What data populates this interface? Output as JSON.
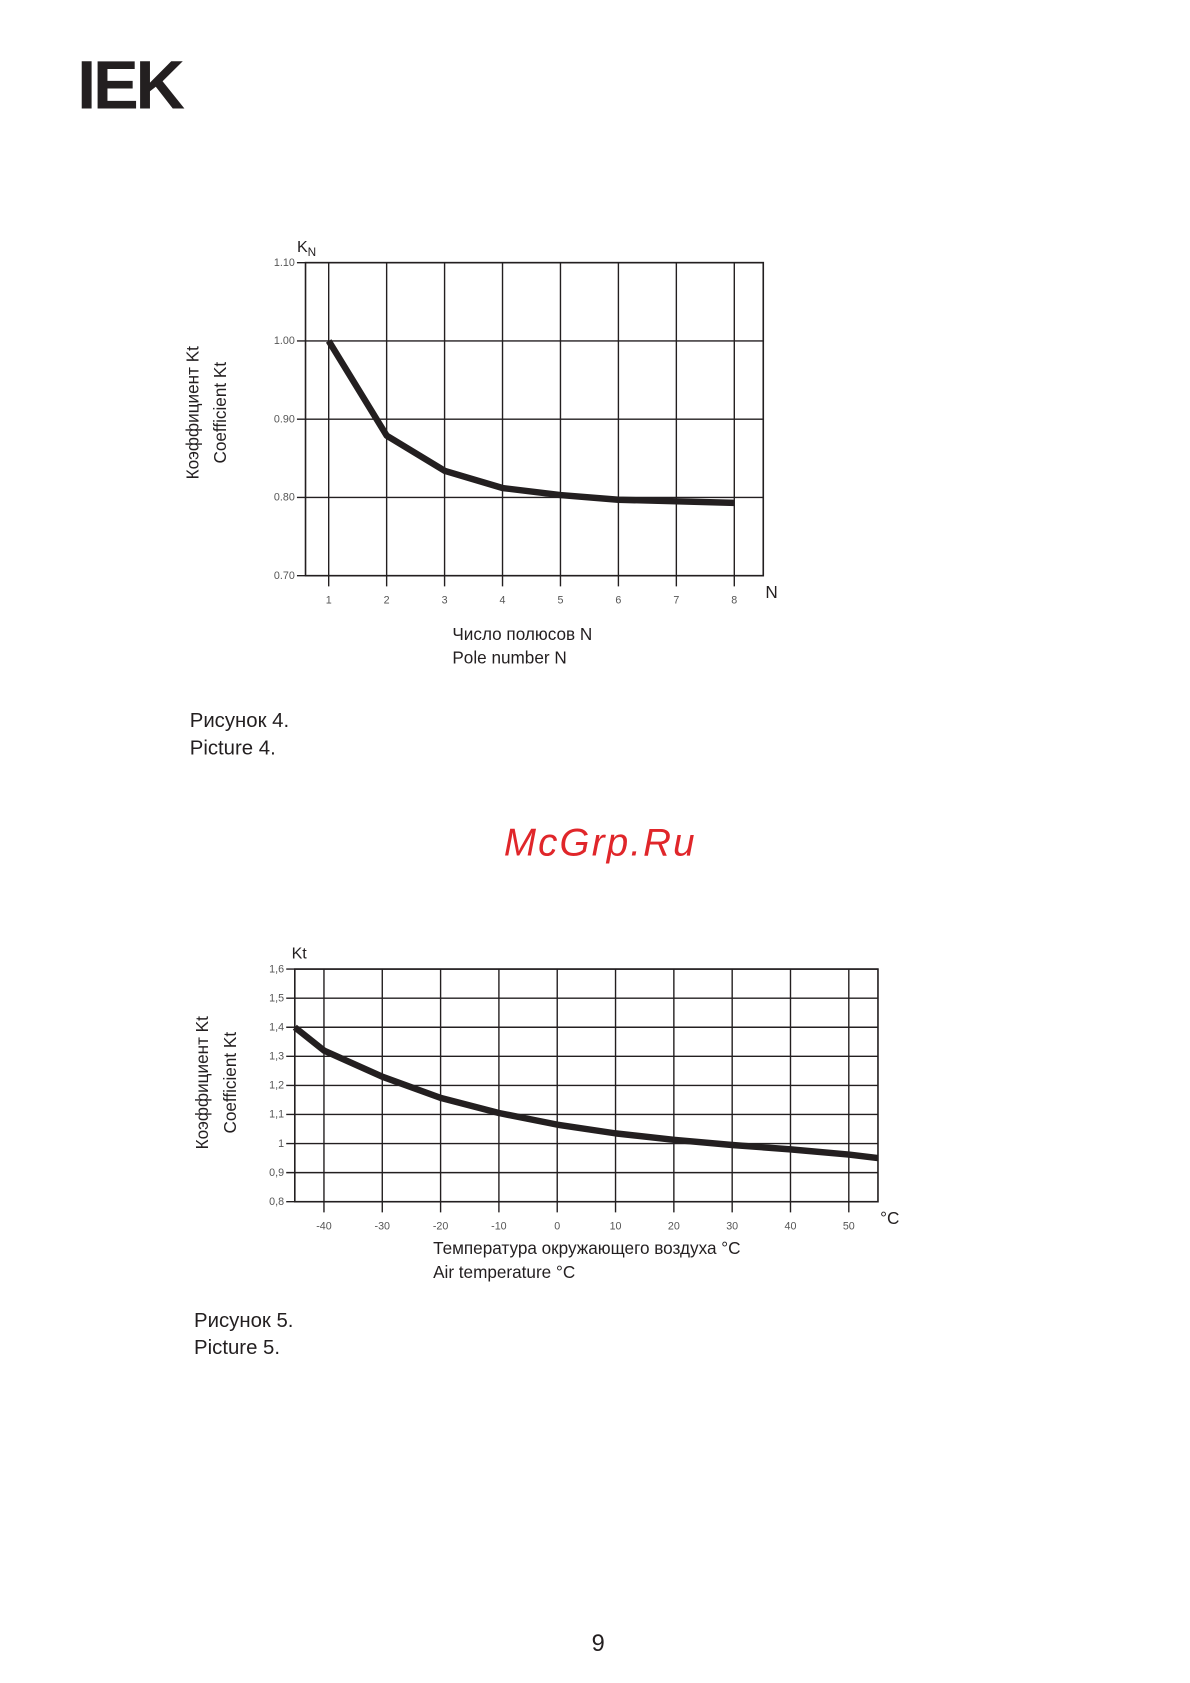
{
  "header": {
    "logo": "IEK"
  },
  "chart_data": [
    {
      "type": "line",
      "y_symbol": "K",
      "y_symbol_sub": "N",
      "y_title": [
        "Коэффициент Kt",
        "Coefficient Kt"
      ],
      "x_title": [
        "Число полюсов N",
        "Pole number N"
      ],
      "x_unit": "N",
      "x": [
        1,
        2,
        3,
        4,
        5,
        6,
        7,
        8
      ],
      "values": [
        1.0,
        0.879,
        0.834,
        0.812,
        0.803,
        0.797,
        0.795,
        0.793
      ],
      "color": "#231f20",
      "xlim": [
        0.6,
        8.5
      ],
      "xticks": [
        1,
        2,
        3,
        4,
        5,
        6,
        7,
        8
      ],
      "ylim": [
        0.7,
        1.1
      ],
      "yticks": [
        {
          "value": 0.7,
          "label": "0.70"
        },
        {
          "value": 0.8,
          "label": "0.80"
        },
        {
          "value": 0.9,
          "label": "0.90"
        },
        {
          "value": 1.0,
          "label": "1.00"
        },
        {
          "value": 1.1,
          "label": "1.10"
        }
      ],
      "grid": true
    },
    {
      "type": "line",
      "y_symbol": "Kt",
      "y_title": [
        "Коэффициент Kt",
        "Coefficient Kt"
      ],
      "x_title": [
        "Температура окружающего воздуха °C",
        "Air temperature  °C"
      ],
      "x_unit": "°C",
      "x": [
        -45,
        -40,
        -30,
        -20,
        -10,
        0,
        10,
        20,
        30,
        40,
        50,
        55
      ],
      "values": [
        1.4,
        1.32,
        1.23,
        1.157,
        1.105,
        1.065,
        1.035,
        1.013,
        0.995,
        0.98,
        0.962,
        0.95
      ],
      "color": "#231f20",
      "xlim": [
        -45,
        55
      ],
      "xticks": [
        -40,
        -30,
        -20,
        -10,
        0,
        10,
        20,
        30,
        40,
        50
      ],
      "ylim": [
        0.8,
        1.6
      ],
      "yticks": [
        {
          "value": 0.8,
          "label": "0,8"
        },
        {
          "value": 0.9,
          "label": "0,9"
        },
        1,
        {
          "value": 1.1,
          "label": "1,1"
        },
        {
          "value": 1.2,
          "label": "1,2"
        },
        {
          "value": 1.3,
          "label": "1,3"
        },
        {
          "value": 1.4,
          "label": "1,4"
        },
        {
          "value": 1.5,
          "label": "1,5"
        },
        {
          "value": 1.6,
          "label": "1,6"
        }
      ],
      "grid": true
    }
  ],
  "figures": [
    {
      "caption_ru": "Рисунок 4.",
      "caption_en": "Picture 4."
    },
    {
      "caption_ru": "Рисунок 5.",
      "caption_en": "Picture 5."
    }
  ],
  "watermark": "McGrp.Ru",
  "page_number": "9"
}
